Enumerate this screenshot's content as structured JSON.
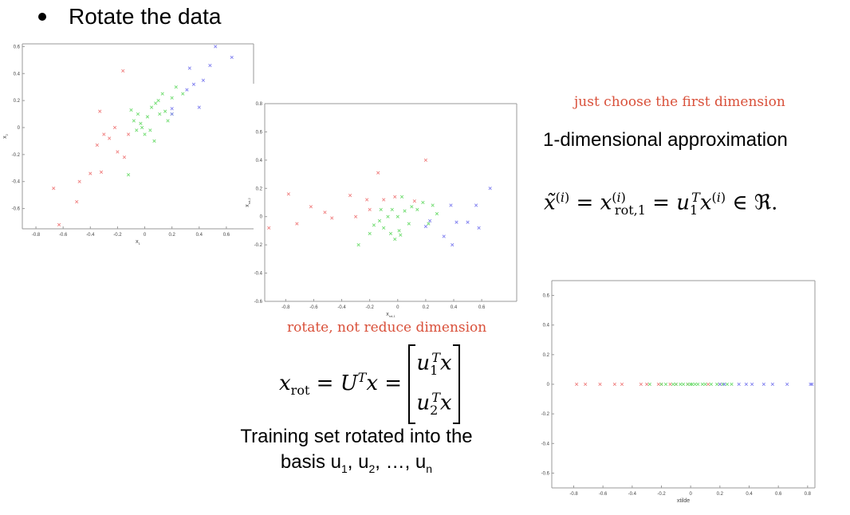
{
  "slide": {
    "title": "Rotate the data",
    "annotation_top": "just choose the first dimension",
    "heading_1d": "1-dimensional approximation",
    "annotation_rotate": "rotate, not  reduce dimension",
    "caption_line1": "Training set rotated into the",
    "caption_basis": "basis u",
    "caption_sub1": "1",
    "caption_sep1": ", u",
    "caption_sub2": "2",
    "caption_sep2": ", …, u",
    "caption_subn": "n"
  },
  "colors": {
    "red": "#f08080",
    "green": "#70dc70",
    "blue": "#7f7ff0",
    "frame": "#999999"
  },
  "chart_data": [
    {
      "type": "scatter",
      "xlabel": "x",
      "xlabel_sub": "1",
      "ylabel": "x",
      "ylabel_sub": "2",
      "xlim": [
        -0.9,
        0.8
      ],
      "ylim": [
        -0.75,
        0.62
      ],
      "xticks": [
        -0.8,
        -0.6,
        -0.4,
        -0.2,
        0,
        0.2,
        0.4,
        0.6
      ],
      "xtick_labels": [
        "-0.8",
        "-0.6",
        "-0.4",
        "-0.2",
        "0",
        "0.2",
        "0.4",
        "0.6"
      ],
      "yticks": [
        -0.6,
        -0.4,
        -0.2,
        0,
        0.2,
        0.4,
        0.6
      ],
      "ytick_labels": [
        "-0.6",
        "-0.4",
        "-0.2",
        "0",
        "0.2",
        "0.4",
        "0.6"
      ],
      "series": [
        {
          "color": "red",
          "points": [
            [
              -0.67,
              -0.45
            ],
            [
              -0.5,
              -0.55
            ],
            [
              -0.48,
              -0.4
            ],
            [
              -0.33,
              0.12
            ],
            [
              -0.32,
              -0.33
            ],
            [
              -0.26,
              -0.08
            ],
            [
              -0.3,
              -0.05
            ],
            [
              -0.35,
              -0.13
            ],
            [
              -0.4,
              -0.34
            ],
            [
              -0.22,
              0.0
            ],
            [
              -0.15,
              -0.22
            ],
            [
              -0.16,
              0.42
            ],
            [
              -0.2,
              -0.18
            ],
            [
              -0.12,
              -0.05
            ],
            [
              -0.63,
              -0.72
            ]
          ]
        },
        {
          "color": "green",
          "points": [
            [
              -0.1,
              0.13
            ],
            [
              -0.08,
              0.05
            ],
            [
              -0.05,
              0.1
            ],
            [
              -0.02,
              0.0
            ],
            [
              0.0,
              -0.05
            ],
            [
              0.02,
              0.08
            ],
            [
              0.05,
              0.15
            ],
            [
              0.07,
              -0.1
            ],
            [
              0.1,
              0.2
            ],
            [
              0.13,
              0.25
            ],
            [
              0.15,
              0.12
            ],
            [
              0.17,
              0.05
            ],
            [
              0.2,
              0.22
            ],
            [
              0.23,
              0.3
            ],
            [
              0.28,
              0.25
            ],
            [
              -0.06,
              -0.02
            ],
            [
              -0.03,
              0.03
            ],
            [
              0.04,
              -0.02
            ],
            [
              0.11,
              0.1
            ],
            [
              0.2,
              0.1
            ],
            [
              -0.12,
              -0.35
            ],
            [
              0.08,
              0.18
            ]
          ]
        },
        {
          "color": "blue",
          "points": [
            [
              0.2,
              0.14
            ],
            [
              0.31,
              0.28
            ],
            [
              0.33,
              0.44
            ],
            [
              0.36,
              0.32
            ],
            [
              0.4,
              0.15
            ],
            [
              0.43,
              0.35
            ],
            [
              0.48,
              0.46
            ],
            [
              0.52,
              0.6
            ],
            [
              0.64,
              0.52
            ],
            [
              0.2,
              0.1
            ]
          ]
        }
      ]
    },
    {
      "type": "scatter",
      "xlabel": "x",
      "xlabel_sub": "rot,1",
      "ylabel": "x",
      "ylabel_sub": "rot,2",
      "xlim": [
        -0.95,
        0.85
      ],
      "ylim": [
        -0.6,
        0.8
      ],
      "xticks": [
        -0.8,
        -0.6,
        -0.4,
        -0.2,
        0,
        0.2,
        0.4,
        0.6
      ],
      "xtick_labels": [
        "-0.8",
        "-0.6",
        "-0.4",
        "-0.2",
        "0",
        "0.2",
        "0.4",
        "0.6"
      ],
      "yticks": [
        -0.6,
        -0.4,
        -0.2,
        0,
        0.2,
        0.4,
        0.6,
        0.8
      ],
      "ytick_labels": [
        "-0.6",
        "-0.4",
        "-0.2",
        "0",
        "0.2",
        "0.4",
        "0.6",
        "0.8"
      ],
      "series": [
        {
          "color": "red",
          "points": [
            [
              -0.78,
              0.16
            ],
            [
              -0.72,
              -0.05
            ],
            [
              -0.62,
              0.07
            ],
            [
              -0.52,
              0.03
            ],
            [
              -0.47,
              -0.01
            ],
            [
              -0.34,
              0.15
            ],
            [
              -0.3,
              0.0
            ],
            [
              -0.22,
              0.12
            ],
            [
              -0.2,
              0.05
            ],
            [
              -0.14,
              0.31
            ],
            [
              -0.1,
              0.12
            ],
            [
              -0.02,
              0.14
            ],
            [
              0.2,
              0.4
            ],
            [
              0.12,
              0.11
            ],
            [
              -0.92,
              -0.08
            ]
          ]
        },
        {
          "color": "green",
          "points": [
            [
              -0.28,
              -0.2
            ],
            [
              -0.2,
              -0.12
            ],
            [
              -0.17,
              -0.06
            ],
            [
              -0.12,
              0.05
            ],
            [
              -0.1,
              -0.08
            ],
            [
              -0.07,
              0.0
            ],
            [
              -0.05,
              -0.12
            ],
            [
              -0.02,
              -0.16
            ],
            [
              0.0,
              0.0
            ],
            [
              0.01,
              -0.1
            ],
            [
              0.03,
              0.14
            ],
            [
              0.05,
              0.04
            ],
            [
              0.08,
              -0.05
            ],
            [
              0.1,
              0.07
            ],
            [
              0.14,
              0.05
            ],
            [
              0.18,
              0.1
            ],
            [
              0.22,
              -0.05
            ],
            [
              0.25,
              0.08
            ],
            [
              0.28,
              0.02
            ],
            [
              -0.13,
              -0.03
            ],
            [
              -0.04,
              0.05
            ],
            [
              0.02,
              -0.13
            ]
          ]
        },
        {
          "color": "blue",
          "points": [
            [
              0.2,
              -0.07
            ],
            [
              0.23,
              -0.03
            ],
            [
              0.33,
              -0.14
            ],
            [
              0.38,
              0.08
            ],
            [
              0.39,
              -0.2
            ],
            [
              0.42,
              -0.04
            ],
            [
              0.5,
              -0.04
            ],
            [
              0.56,
              0.08
            ],
            [
              0.58,
              -0.08
            ],
            [
              0.66,
              0.2
            ]
          ]
        }
      ]
    },
    {
      "type": "scatter",
      "xlabel": "xtilde",
      "xlim": [
        -0.95,
        0.85
      ],
      "ylim": [
        -0.7,
        0.7
      ],
      "xticks": [
        -0.8,
        -0.6,
        -0.4,
        -0.2,
        0,
        0.2,
        0.4,
        0.6,
        0.8
      ],
      "xtick_labels": [
        "-0.8",
        "-0.6",
        "-0.4",
        "-0.2",
        "0",
        "0.2",
        "0.4",
        "0.6",
        "0.8"
      ],
      "yticks": [
        -0.6,
        -0.4,
        -0.2,
        0,
        0.2,
        0.4,
        0.6
      ],
      "ytick_labels": [
        "-0.6",
        "-0.4",
        "-0.2",
        "0",
        "0.2",
        "0.4",
        "0.6"
      ],
      "series": [
        {
          "color": "red",
          "points": [
            [
              -0.78,
              0
            ],
            [
              -0.72,
              0
            ],
            [
              -0.62,
              0
            ],
            [
              -0.52,
              0
            ],
            [
              -0.47,
              0
            ],
            [
              -0.34,
              0
            ],
            [
              -0.3,
              0
            ],
            [
              -0.22,
              0
            ],
            [
              -0.2,
              0
            ],
            [
              -0.14,
              0
            ],
            [
              -0.1,
              0
            ],
            [
              -0.02,
              0
            ],
            [
              0.12,
              0
            ],
            [
              0.2,
              0
            ]
          ]
        },
        {
          "color": "green",
          "points": [
            [
              -0.28,
              0
            ],
            [
              -0.2,
              0
            ],
            [
              -0.17,
              0
            ],
            [
              -0.12,
              0
            ],
            [
              -0.1,
              0
            ],
            [
              -0.07,
              0
            ],
            [
              -0.05,
              0
            ],
            [
              -0.02,
              0
            ],
            [
              0.0,
              0
            ],
            [
              0.01,
              0
            ],
            [
              0.03,
              0
            ],
            [
              0.05,
              0
            ],
            [
              0.08,
              0
            ],
            [
              0.1,
              0
            ],
            [
              0.14,
              0
            ],
            [
              0.18,
              0
            ],
            [
              0.22,
              0
            ],
            [
              0.25,
              0
            ],
            [
              0.28,
              0
            ]
          ]
        },
        {
          "color": "blue",
          "points": [
            [
              0.2,
              0
            ],
            [
              0.23,
              0
            ],
            [
              0.33,
              0
            ],
            [
              0.38,
              0
            ],
            [
              0.42,
              0
            ],
            [
              0.5,
              0
            ],
            [
              0.56,
              0
            ],
            [
              0.66,
              0
            ],
            [
              0.82,
              0
            ],
            [
              0.83,
              0
            ]
          ]
        }
      ]
    }
  ]
}
